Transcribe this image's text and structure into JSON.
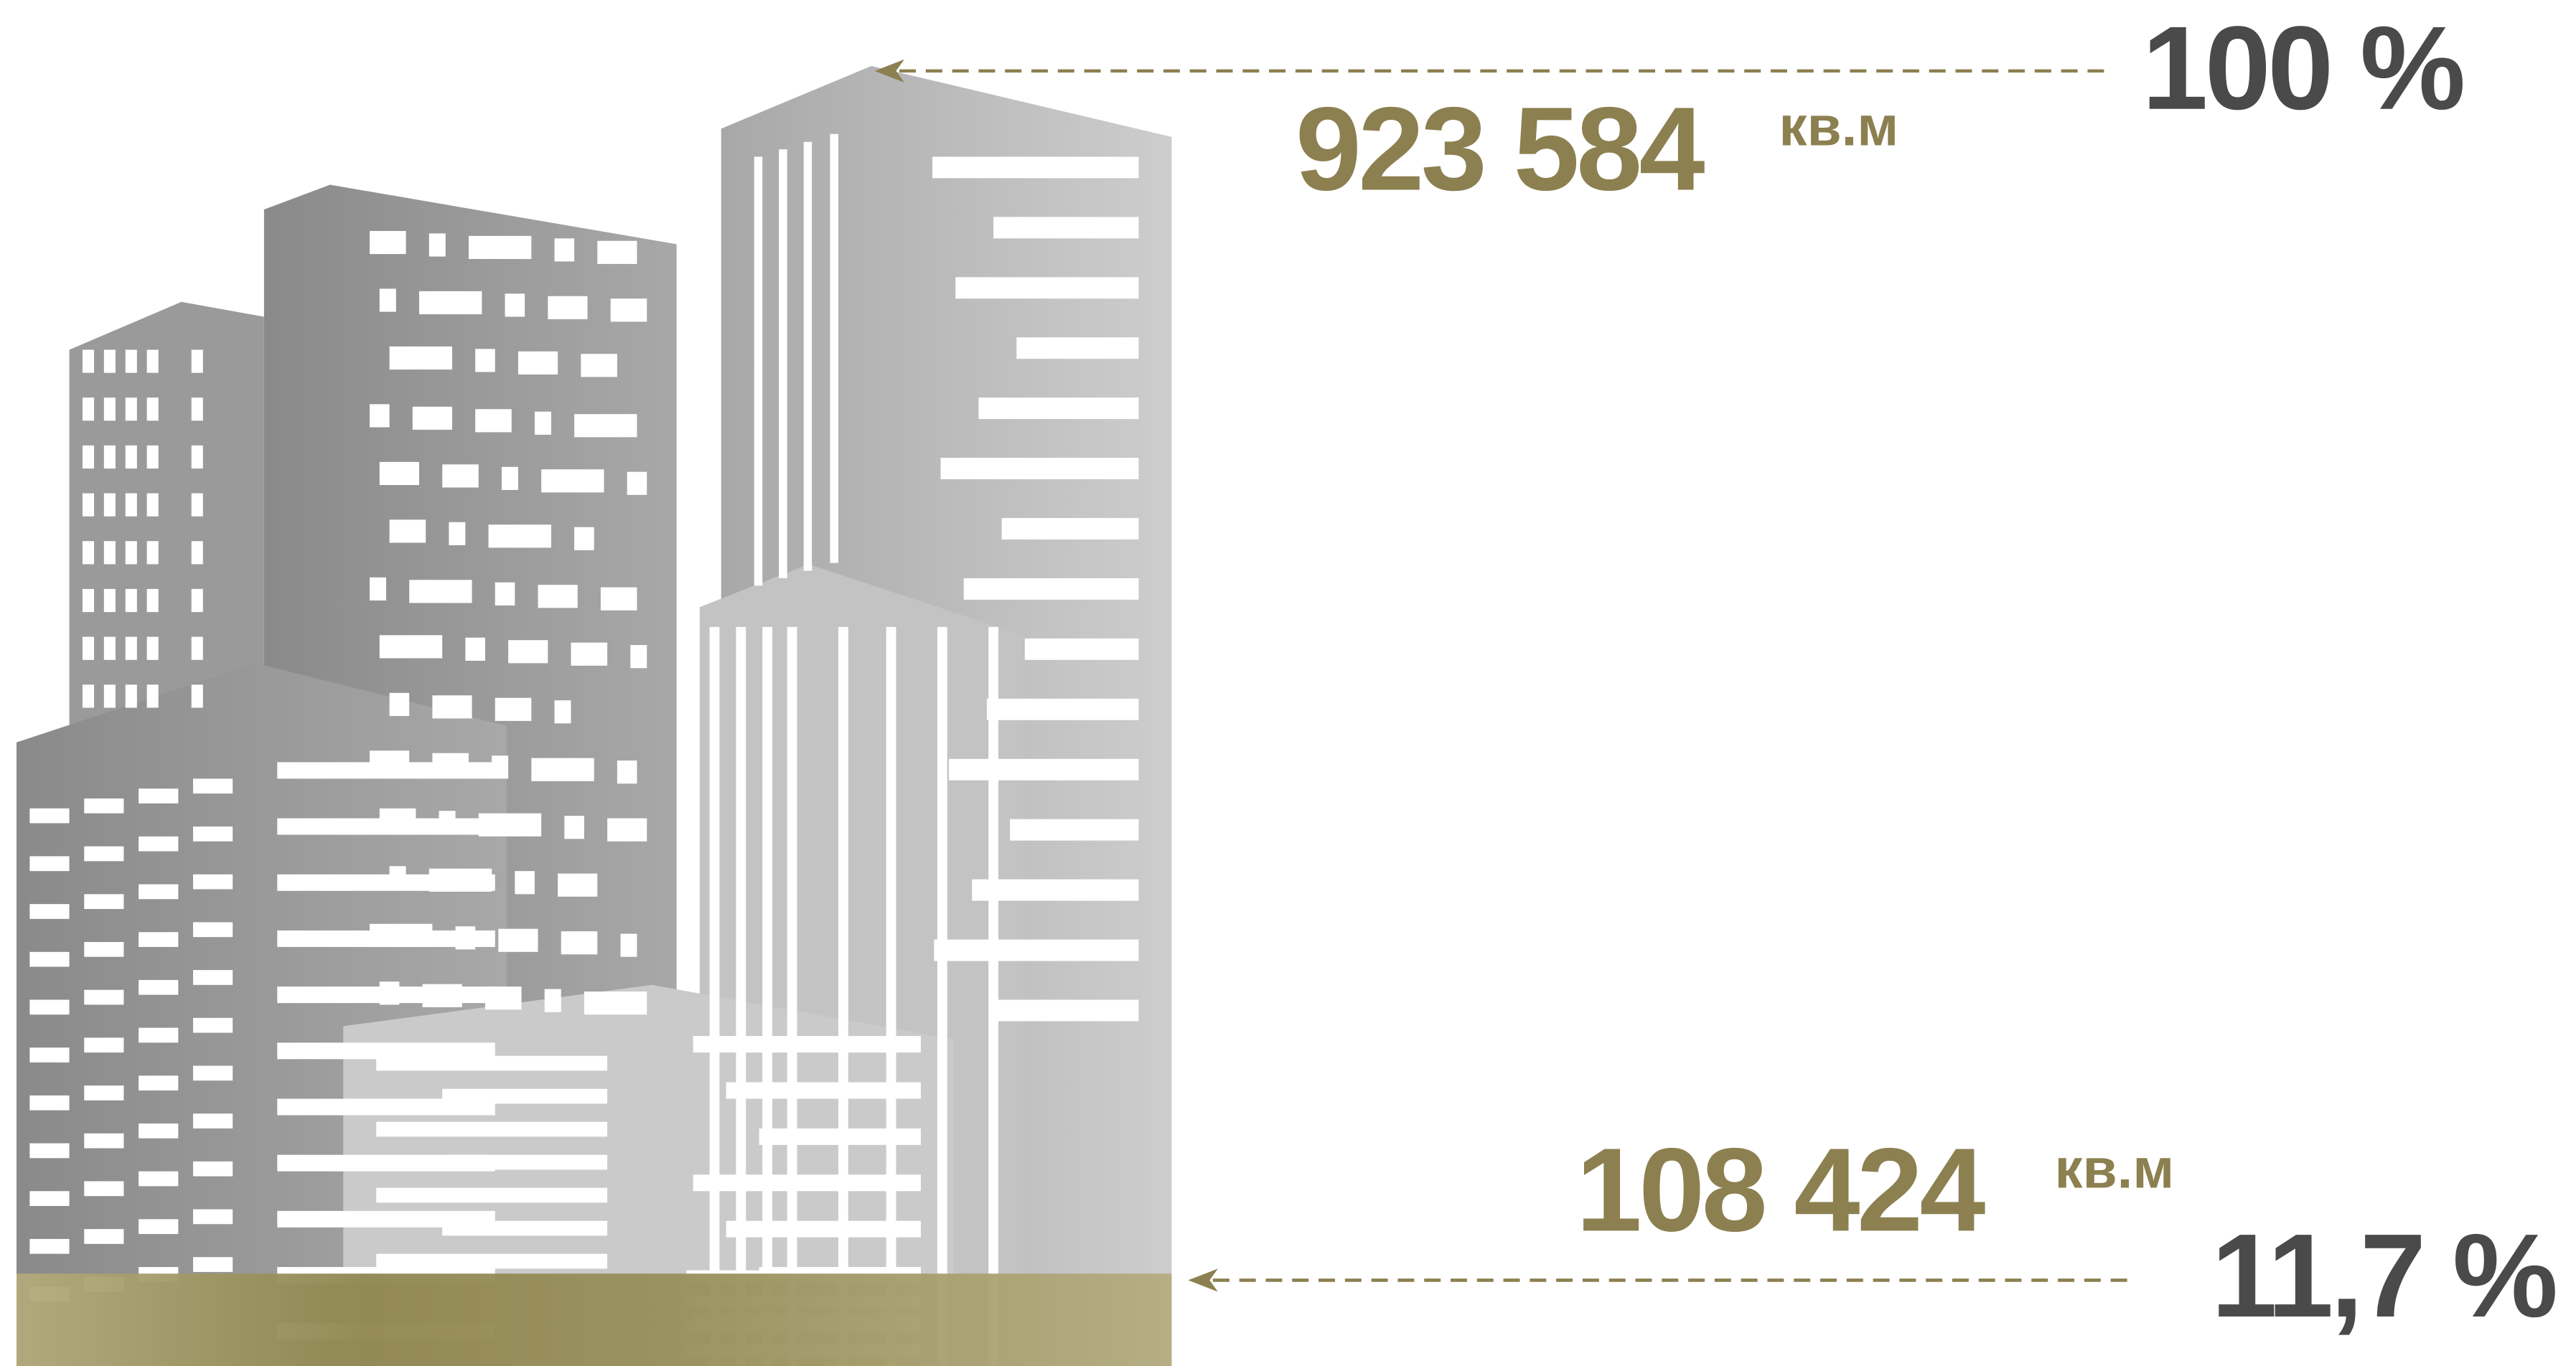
{
  "total": {
    "value": "923 584",
    "unit": "кв.м",
    "percent": "100 %"
  },
  "part": {
    "value": "108 424",
    "unit": "кв.м",
    "percent": "11,7 %"
  }
}
